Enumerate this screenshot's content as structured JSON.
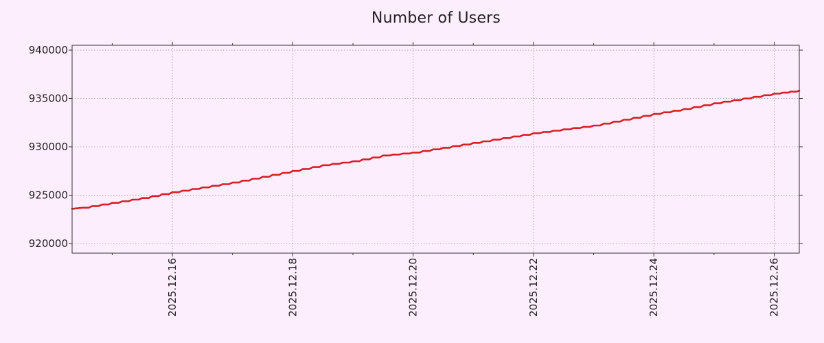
{
  "chart_data": {
    "type": "line",
    "title": "Number of Users",
    "xlabel": "",
    "ylabel": "",
    "x_ticks": [
      "2025.12.16",
      "2025.12.18",
      "2025.12.20",
      "2025.12.22",
      "2025.12.24",
      "2025.12.26"
    ],
    "y_ticks": [
      "920000",
      "925000",
      "930000",
      "935000",
      "940000"
    ],
    "xlim": [
      "2025-12-14 08:00",
      "2025-12-26 10:00"
    ],
    "ylim": [
      919000,
      940500
    ],
    "grid": true,
    "colors": {
      "line": "#d62027",
      "background": "#fdeefd",
      "grid": "#999999",
      "axes": "#333333"
    },
    "series": [
      {
        "x": [
          "2025-12-14 08:00",
          "2025-12-14 12:00",
          "2025-12-15 00:00",
          "2025-12-15 12:00",
          "2025-12-16 00:00",
          "2025-12-16 12:00",
          "2025-12-17 00:00",
          "2025-12-17 12:00",
          "2025-12-18 00:00",
          "2025-12-18 12:00",
          "2025-12-19 00:00",
          "2025-12-19 12:00",
          "2025-12-20 00:00",
          "2025-12-20 12:00",
          "2025-12-21 00:00",
          "2025-12-21 12:00",
          "2025-12-22 00:00",
          "2025-12-22 12:00",
          "2025-12-23 00:00",
          "2025-12-23 12:00",
          "2025-12-24 00:00",
          "2025-12-24 12:00",
          "2025-12-25 00:00",
          "2025-12-25 12:00",
          "2025-12-26 00:00",
          "2025-12-26 10:00"
        ],
        "values": [
          923600,
          923700,
          924200,
          924700,
          925300,
          925800,
          926300,
          926900,
          927500,
          928100,
          928500,
          929100,
          929400,
          929900,
          930400,
          930900,
          931400,
          931800,
          932200,
          932800,
          933400,
          933900,
          934500,
          935000,
          935500,
          935800
        ]
      }
    ]
  }
}
